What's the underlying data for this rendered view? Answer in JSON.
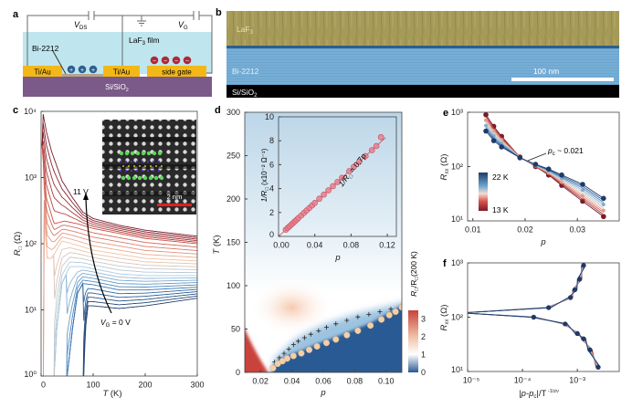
{
  "colors": {
    "film": "#bfe6ee",
    "electrode": "#f3b817",
    "substrate": "#7b5a8a",
    "bi_strip": "#b5a58c",
    "positive_charge": "#2c5f91",
    "negative_charge": "#b0283a",
    "laf3_layer": "#a59a58",
    "bi2212_layer": "#6aa5cf",
    "sio2_layer": "#000000",
    "low_voltage": "#1f3a68",
    "high_voltage": "#7a1a2a",
    "tc_marker": "#f3cfa8",
    "inset_marker": "#e8828f",
    "scale_bar_c": "#e0201e"
  },
  "panel_a": {
    "label": "a",
    "vds": {
      "main": "V",
      "sub": "DS"
    },
    "vg": {
      "main": "V",
      "sub": "G"
    },
    "film": {
      "main": "LaF",
      "sub": "3",
      "suffix": " film"
    },
    "bi_label": "Bi-2212",
    "electrode_left": "Ti/Au",
    "electrode_middle": "Ti/Au",
    "side_gate": "side gate",
    "substrate": {
      "main": "Si/SiO",
      "sub": "2"
    },
    "positive_sign": "+",
    "negative_sign": "−"
  },
  "panel_b": {
    "label": "b",
    "laf3": {
      "main": "LaF",
      "sub": "3"
    },
    "bi2212": "Bi-2212",
    "substrate": {
      "main": "Si/SiO",
      "sub": "2"
    },
    "scale_bar": "100 nm"
  },
  "chart_data": [
    {
      "panel": "c",
      "type": "line",
      "xlabel": {
        "main": "T",
        "rest": " (K)"
      },
      "ylabel": {
        "main": "R",
        "sub": "□",
        "rest": " (Ω)"
      },
      "xlim": [
        0,
        300
      ],
      "ylim": [
        1,
        10000
      ],
      "yscale": "log",
      "xticks": [
        0,
        100,
        200,
        300
      ],
      "xtick_labels": [
        "0",
        "100",
        "200",
        "300"
      ],
      "yticks": [
        1,
        10,
        100,
        1000,
        10000
      ],
      "ytick_labels": [
        "10⁰",
        "10¹",
        "10²",
        "10³",
        "10⁴"
      ],
      "annotations": {
        "top": "11 V",
        "bottom": {
          "main": "V",
          "sub": "G",
          "rest": " = 0 V"
        },
        "inset_scale": "2 nm"
      },
      "series": [
        {
          "name": "0 V",
          "points": [
            [
              82,
              1
            ],
            [
              85,
              5
            ],
            [
              90,
              11.5
            ],
            [
              100,
              11.5
            ],
            [
              150,
              10.5
            ],
            [
              200,
              11.5
            ],
            [
              300,
              15
            ]
          ]
        },
        {
          "points": [
            [
              50,
              1
            ],
            [
              60,
              5
            ],
            [
              70,
              18
            ],
            [
              80,
              25
            ],
            [
              100,
              24
            ],
            [
              150,
              20
            ],
            [
              200,
              20
            ],
            [
              300,
              22
            ]
          ]
        },
        {
          "points": [
            [
              25,
              1
            ],
            [
              30,
              5
            ],
            [
              40,
              25
            ],
            [
              55,
              45
            ],
            [
              80,
              45
            ],
            [
              150,
              35
            ],
            [
              200,
              33
            ],
            [
              300,
              33
            ]
          ]
        },
        {
          "points": [
            [
              5,
              300
            ],
            [
              12,
              60
            ],
            [
              20,
              60
            ],
            [
              40,
              110
            ],
            [
              60,
              100
            ],
            [
              100,
              80
            ],
            [
              200,
              60
            ],
            [
              300,
              55
            ]
          ]
        },
        {
          "points": [
            [
              2,
              3000
            ],
            [
              10,
              500
            ],
            [
              25,
              200
            ],
            [
              45,
              220
            ],
            [
              70,
              200
            ],
            [
              100,
              170
            ],
            [
              200,
              120
            ],
            [
              300,
              100
            ]
          ]
        },
        {
          "name": "11 V",
          "points": [
            [
              3,
              10000
            ],
            [
              10,
              5000
            ],
            [
              20,
              2500
            ],
            [
              40,
              900
            ],
            [
              60,
              500
            ],
            [
              80,
              300
            ],
            [
              100,
              240
            ],
            [
              150,
              190
            ],
            [
              200,
              160
            ],
            [
              300,
              130
            ]
          ]
        }
      ]
    },
    {
      "panel": "d",
      "type": "heatmap",
      "xlabel": "p",
      "ylabel": {
        "main": "T",
        "rest": " (K)"
      },
      "xlim": [
        0.01,
        0.11
      ],
      "ylim": [
        0,
        300
      ],
      "xticks": [
        0.02,
        0.04,
        0.06,
        0.08,
        0.1
      ],
      "xtick_labels": [
        "0.02",
        "0.04",
        "0.06",
        "0.08",
        "0.10"
      ],
      "yticks": [
        0,
        50,
        100,
        150,
        200,
        250,
        300
      ],
      "ytick_labels": [
        "0",
        "50",
        "100",
        "150",
        "200",
        "250",
        "300"
      ],
      "colorbar": {
        "label": {
          "main": "R",
          "sub": "□",
          "mid": "/R",
          "sub2": "□",
          "rest": "(200 K)"
        },
        "range": [
          0,
          3.5
        ],
        "ticks": [
          0,
          1,
          2,
          3
        ],
        "tick_labels": [
          "0",
          "1",
          "2",
          "3"
        ],
        "colors": [
          "#2a5a93",
          "#ffffff",
          "#c9423a"
        ]
      },
      "tc_circles": [
        [
          0.028,
          5
        ],
        [
          0.031,
          10
        ],
        [
          0.034,
          13
        ],
        [
          0.037,
          16
        ],
        [
          0.041,
          19
        ],
        [
          0.046,
          22
        ],
        [
          0.051,
          26
        ],
        [
          0.056,
          30
        ],
        [
          0.062,
          34
        ],
        [
          0.068,
          38
        ],
        [
          0.075,
          43
        ],
        [
          0.082,
          48
        ],
        [
          0.09,
          54
        ],
        [
          0.097,
          61
        ],
        [
          0.102,
          66
        ],
        [
          0.106,
          70
        ],
        [
          0.11,
          75
        ]
      ],
      "crosses": [
        [
          0.029,
          12
        ],
        [
          0.032,
          17
        ],
        [
          0.035,
          22
        ],
        [
          0.038,
          27
        ],
        [
          0.041,
          32
        ],
        [
          0.044,
          36
        ],
        [
          0.048,
          40
        ],
        [
          0.052,
          44
        ],
        [
          0.057,
          48
        ],
        [
          0.062,
          52
        ],
        [
          0.068,
          56
        ],
        [
          0.075,
          60
        ],
        [
          0.082,
          64
        ],
        [
          0.089,
          67
        ],
        [
          0.096,
          70
        ],
        [
          0.103,
          73
        ],
        [
          0.11,
          76
        ]
      ],
      "inset": {
        "type": "scatter",
        "xlabel": "p",
        "ylabel": {
          "main": "1/R",
          "sub": "□",
          "rest": " (x10⁻² Ω⁻¹)"
        },
        "xlim": [
          0,
          0.13
        ],
        "ylim": [
          0,
          10
        ],
        "xticks": [
          0,
          0.04,
          0.08,
          0.12
        ],
        "xtick_labels": [
          "0.00",
          "0.04",
          "0.08",
          "0.12"
        ],
        "yticks": [
          0,
          2,
          4,
          6,
          8,
          10
        ],
        "ytick_labels": [
          "0",
          "2",
          "4",
          "6",
          "8",
          "10"
        ],
        "fit_label": {
          "main": "1/R",
          "sub": "□",
          "rest": " = 0.7p"
        },
        "fit_slope": 70,
        "x": [
          0.008,
          0.01,
          0.012,
          0.014,
          0.016,
          0.018,
          0.02,
          0.022,
          0.025,
          0.028,
          0.031,
          0.034,
          0.037,
          0.04,
          0.045,
          0.05,
          0.055,
          0.06,
          0.065,
          0.07,
          0.078,
          0.083,
          0.089,
          0.096,
          0.103,
          0.108,
          0.113
        ],
        "y": [
          0.56,
          0.7,
          0.84,
          0.98,
          1.12,
          1.26,
          1.4,
          1.54,
          1.75,
          1.96,
          2.17,
          2.38,
          2.59,
          2.8,
          3.15,
          3.5,
          3.85,
          4.2,
          4.55,
          4.9,
          5.46,
          5.81,
          6.23,
          6.72,
          7.21,
          7.56,
          8.3
        ]
      }
    },
    {
      "panel": "e",
      "type": "line",
      "xlabel": "p",
      "ylabel": {
        "main": "R",
        "sub": "xx",
        "rest": " (Ω)"
      },
      "xlim": [
        0.009,
        0.038
      ],
      "ylim": [
        10,
        1000
      ],
      "yscale": "log",
      "xticks": [
        0.01,
        0.02,
        0.03
      ],
      "xtick_labels": [
        "0.01",
        "0.02",
        "0.03"
      ],
      "yticks": [
        10,
        100,
        1000
      ],
      "ytick_labels": [
        "10¹",
        "10²",
        "10³"
      ],
      "annotation": {
        "main": "p",
        "sub": "c",
        "rest": " ~ 0.021"
      },
      "legend": {
        "high": "22 K",
        "low": "13 K",
        "placement": "center-left"
      },
      "x": [
        0.0125,
        0.014,
        0.0155,
        0.019,
        0.022,
        0.0245,
        0.027,
        0.031,
        0.035
      ],
      "series": [
        {
          "name": "22 K",
          "values": [
            900,
            550,
            360,
            150,
            100,
            70,
            45,
            23,
            12
          ]
        },
        {
          "name": "13 K",
          "values": [
            450,
            300,
            230,
            145,
            110,
            90,
            70,
            47,
            26
          ]
        }
      ]
    },
    {
      "panel": "f",
      "type": "line",
      "xlabel": {
        "main": "|p-p",
        "sub": "c",
        "mid": "|/T",
        "sup": " -1/zν"
      },
      "ylabel": {
        "main": "R",
        "sub": "xx",
        "rest": " (Ω)"
      },
      "xlim": [
        1e-05,
        0.0058
      ],
      "ylim": [
        10,
        1000
      ],
      "xscale": "log",
      "yscale": "log",
      "xticks": [
        1e-05,
        0.0001,
        0.001
      ],
      "xtick_labels": [
        "10⁻⁵",
        "10⁻⁴",
        "10⁻³"
      ],
      "yticks": [
        10,
        100,
        1000
      ],
      "ytick_labels": [
        "10¹",
        "10²",
        "10³"
      ],
      "upper_branch": [
        [
          1e-05,
          122
        ],
        [
          0.0003,
          150
        ],
        [
          0.00075,
          230
        ],
        [
          0.0009,
          320
        ],
        [
          0.0011,
          500
        ],
        [
          0.0013,
          900
        ]
      ],
      "lower_branch": [
        [
          1e-05,
          118
        ],
        [
          0.00016,
          100
        ],
        [
          0.0006,
          75
        ],
        [
          0.001,
          50
        ],
        [
          0.0013,
          40
        ],
        [
          0.0017,
          25
        ],
        [
          0.0024,
          12
        ]
      ]
    }
  ]
}
